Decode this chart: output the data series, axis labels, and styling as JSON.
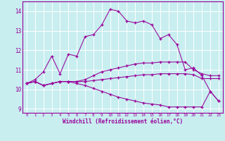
{
  "xlabel": "Windchill (Refroidissement éolien,°C)",
  "bg_color": "#c8eef0",
  "grid_color": "#ffffff",
  "line_color": "#990099",
  "x": [
    0,
    1,
    2,
    3,
    4,
    5,
    6,
    7,
    8,
    9,
    10,
    11,
    12,
    13,
    14,
    15,
    16,
    17,
    18,
    19,
    20,
    21,
    22,
    23
  ],
  "series_main": [
    10.3,
    10.5,
    10.9,
    11.7,
    10.8,
    11.8,
    11.7,
    12.7,
    12.8,
    13.3,
    14.1,
    14.0,
    13.5,
    13.4,
    13.5,
    13.3,
    12.6,
    12.8,
    12.3,
    11.0,
    11.1,
    10.7,
    9.9,
    9.4
  ],
  "series_upper": [
    10.3,
    10.4,
    10.2,
    10.3,
    10.4,
    10.4,
    10.4,
    10.5,
    10.7,
    10.9,
    11.0,
    11.1,
    11.2,
    11.3,
    11.35,
    11.35,
    11.4,
    11.4,
    11.4,
    11.4,
    11.0,
    10.8,
    10.7,
    10.7
  ],
  "series_mid": [
    10.3,
    10.4,
    10.2,
    10.3,
    10.4,
    10.4,
    10.4,
    10.4,
    10.45,
    10.5,
    10.55,
    10.6,
    10.65,
    10.7,
    10.75,
    10.75,
    10.8,
    10.8,
    10.8,
    10.8,
    10.75,
    10.55,
    10.55,
    10.55
  ],
  "series_lower": [
    10.3,
    10.4,
    10.2,
    10.3,
    10.4,
    10.4,
    10.3,
    10.2,
    10.05,
    9.9,
    9.75,
    9.6,
    9.5,
    9.4,
    9.3,
    9.25,
    9.2,
    9.1,
    9.1,
    9.1,
    9.1,
    9.1,
    9.9,
    9.4
  ],
  "xlim": [
    -0.5,
    23.5
  ],
  "ylim": [
    8.8,
    14.5
  ],
  "yticks": [
    9,
    10,
    11,
    12,
    13,
    14
  ],
  "xticks": [
    0,
    1,
    2,
    3,
    4,
    5,
    6,
    7,
    8,
    9,
    10,
    11,
    12,
    13,
    14,
    15,
    16,
    17,
    18,
    19,
    20,
    21,
    22,
    23
  ]
}
